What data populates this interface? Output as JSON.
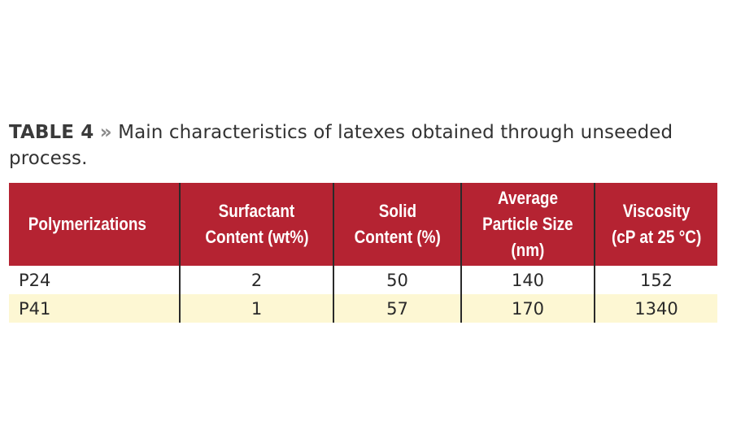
{
  "caption": {
    "label": "TABLE 4",
    "separator": "»",
    "text": "Main characteristics of latexes obtained through unseeded process."
  },
  "table": {
    "headers": [
      [
        "Polymerizations"
      ],
      [
        "Surfactant",
        "Content (wt%)"
      ],
      [
        "Solid",
        "Content (%)"
      ],
      [
        "Average",
        "Particle Size",
        "(nm)"
      ],
      [
        "Viscosity",
        "(cP at 25 °C)"
      ]
    ],
    "rows": [
      [
        "P24",
        "2",
        "50",
        "140",
        "152"
      ],
      [
        "P41",
        "1",
        "57",
        "170",
        "1340"
      ]
    ]
  },
  "colors": {
    "header_bg": "#b52332",
    "header_text": "#ffffff",
    "alt_row_bg": "#fdf7d3",
    "divider": "#2a2a2a"
  }
}
